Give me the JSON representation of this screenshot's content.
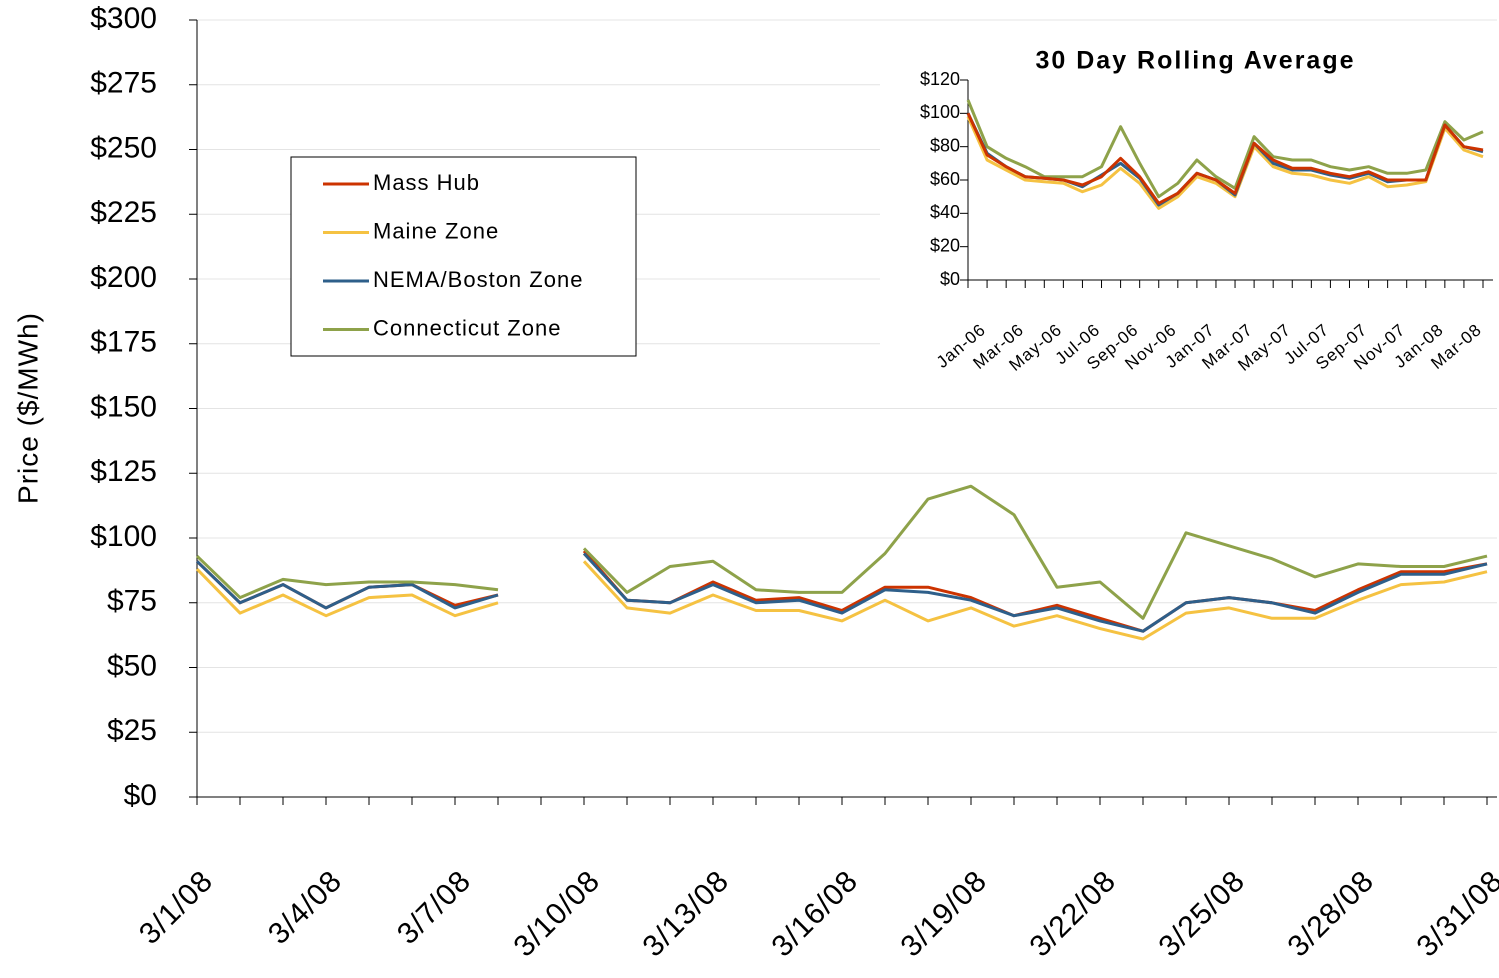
{
  "chart_data": [
    {
      "type": "line",
      "y_label": "Price ($/MWh)",
      "categories": [
        "3/1/08",
        null,
        null,
        "3/4/08",
        null,
        null,
        "3/7/08",
        null,
        null,
        "3/10/08",
        null,
        null,
        "3/13/08",
        null,
        null,
        "3/16/08",
        null,
        null,
        "3/19/08",
        null,
        null,
        "3/22/08",
        null,
        null,
        "3/25/08",
        null,
        null,
        "3/28/08",
        null,
        null,
        "3/31/08"
      ],
      "series": [
        {
          "name": "Mass Hub",
          "color": "#cc3300",
          "values": [
            91,
            75,
            82,
            73,
            81,
            82,
            74,
            78,
            null,
            95,
            76,
            75,
            83,
            76,
            77,
            72,
            81,
            81,
            77,
            70,
            74,
            69,
            64,
            75,
            77,
            75,
            72,
            80,
            87,
            87,
            90
          ]
        },
        {
          "name": "Maine Zone",
          "color": "#f5c242",
          "values": [
            88,
            71,
            78,
            70,
            77,
            78,
            70,
            75,
            null,
            91,
            73,
            71,
            78,
            72,
            72,
            68,
            76,
            68,
            73,
            66,
            70,
            65,
            61,
            71,
            73,
            69,
            69,
            76,
            82,
            83,
            87
          ]
        },
        {
          "name": "NEMA/Boston Zone",
          "color": "#2e5f8a",
          "values": [
            91,
            75,
            82,
            73,
            81,
            82,
            73,
            78,
            null,
            94,
            76,
            75,
            82,
            75,
            76,
            71,
            80,
            79,
            76,
            70,
            73,
            68,
            64,
            75,
            77,
            75,
            71,
            79,
            86,
            86,
            90
          ]
        },
        {
          "name": "Connecticut Zone",
          "color": "#8ea24a",
          "values": [
            93,
            77,
            84,
            82,
            83,
            83,
            82,
            80,
            null,
            96,
            79,
            89,
            91,
            80,
            79,
            79,
            94,
            115,
            120,
            109,
            81,
            83,
            69,
            102,
            97,
            92,
            85,
            90,
            89,
            89,
            93
          ]
        }
      ],
      "ylim": [
        0,
        300
      ],
      "yticks": [
        {
          "value": 0,
          "label": "$0"
        },
        {
          "value": 25,
          "label": "$25"
        },
        {
          "value": 50,
          "label": "$50"
        },
        {
          "value": 75,
          "label": "$75"
        },
        {
          "value": 100,
          "label": "$100"
        },
        {
          "value": 125,
          "label": "$125"
        },
        {
          "value": 150,
          "label": "$150"
        },
        {
          "value": 175,
          "label": "$175"
        },
        {
          "value": 200,
          "label": "$200"
        },
        {
          "value": 225,
          "label": "$225"
        },
        {
          "value": 250,
          "label": "$250"
        },
        {
          "value": 275,
          "label": "$275"
        },
        {
          "value": 300,
          "label": "$300"
        }
      ],
      "grid": true,
      "legend": "upper left"
    },
    {
      "type": "line",
      "title": "30 Day Rolling Average",
      "categories": [
        "Jan-06",
        null,
        "Mar-06",
        null,
        "May-06",
        null,
        "Jul-06",
        null,
        "Sep-06",
        null,
        "Nov-06",
        null,
        "Jan-07",
        null,
        "Mar-07",
        null,
        "May-07",
        null,
        "Jul-07",
        null,
        "Sep-07",
        null,
        "Nov-07",
        null,
        "Jan-08",
        null,
        "Mar-08",
        null
      ],
      "series": [
        {
          "color": "#8ea24a",
          "values": [
            108,
            80,
            73,
            68,
            62,
            62,
            62,
            68,
            92,
            70,
            50,
            58,
            72,
            62,
            55,
            86,
            74,
            72,
            72,
            68,
            66,
            68,
            64,
            64,
            66,
            95,
            84,
            89
          ]
        },
        {
          "color": "#f5c242",
          "values": [
            98,
            72,
            66,
            60,
            59,
            58,
            53,
            57,
            67,
            58,
            43,
            50,
            62,
            58,
            50,
            80,
            68,
            64,
            63,
            60,
            58,
            62,
            56,
            57,
            59,
            91,
            78,
            74
          ]
        },
        {
          "color": "#2e5f8a",
          "values": [
            100,
            76,
            68,
            62,
            61,
            60,
            56,
            63,
            70,
            61,
            45,
            52,
            64,
            60,
            51,
            82,
            70,
            66,
            66,
            63,
            61,
            64,
            59,
            60,
            60,
            93,
            80,
            77
          ]
        },
        {
          "color": "#cc3300",
          "values": [
            100,
            75,
            68,
            62,
            61,
            60,
            57,
            62,
            73,
            62,
            46,
            52,
            64,
            60,
            52,
            82,
            72,
            67,
            67,
            64,
            62,
            65,
            60,
            60,
            60,
            93,
            80,
            78
          ]
        }
      ],
      "ylim": [
        0,
        120
      ],
      "yticks": [
        {
          "value": 0,
          "label": "$0"
        },
        {
          "value": 20,
          "label": "$20"
        },
        {
          "value": 40,
          "label": "$40"
        },
        {
          "value": 60,
          "label": "$60"
        },
        {
          "value": 80,
          "label": "$80"
        },
        {
          "value": 100,
          "label": "$100"
        },
        {
          "value": 120,
          "label": "$120"
        }
      ],
      "grid": false
    }
  ]
}
